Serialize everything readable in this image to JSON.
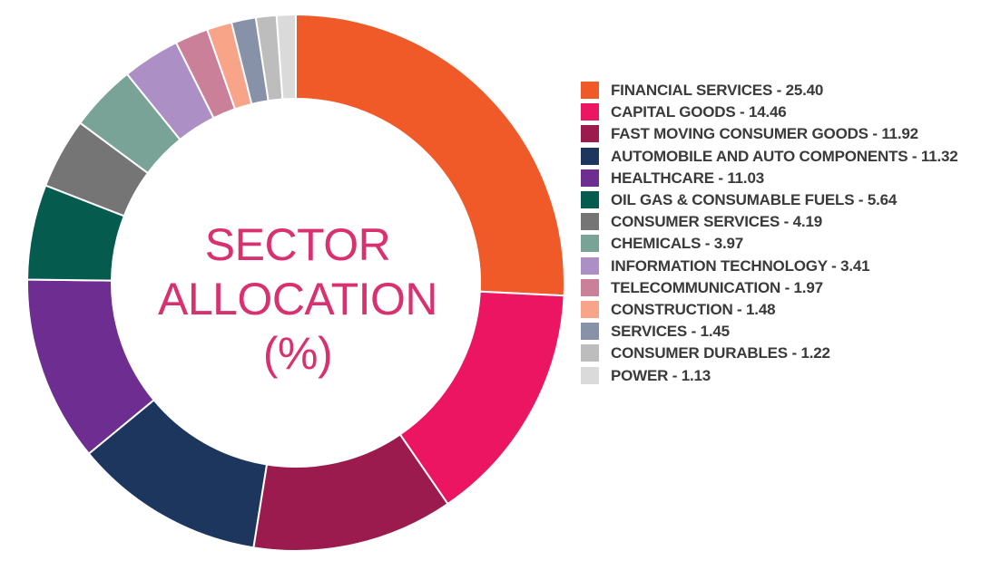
{
  "chart_data": {
    "type": "pie",
    "variant": "donut",
    "title_lines": [
      "SECTOR",
      "ALLOCATION",
      "(%)"
    ],
    "legend_placement": "right",
    "slices": [
      {
        "name": "FINANCIAL SERVICES",
        "value": 25.4,
        "label": "FINANCIAL SERVICES - 25.40",
        "color": "#f05a28"
      },
      {
        "name": "CAPITAL GOODS",
        "value": 14.46,
        "label": "CAPITAL GOODS - 14.46",
        "color": "#ec1561"
      },
      {
        "name": "FAST MOVING CONSUMER GOODS",
        "value": 11.92,
        "label": "FAST MOVING CONSUMER GOODS - 11.92",
        "color": "#9b1b4e"
      },
      {
        "name": "AUTOMOBILE AND AUTO COMPONENTS",
        "value": 11.32,
        "label": "AUTOMOBILE AND AUTO COMPONENTS - 11.32",
        "color": "#1c365e"
      },
      {
        "name": "HEALTHCARE",
        "value": 11.03,
        "label": "HEALTHCARE - 11.03",
        "color": "#6e2d91"
      },
      {
        "name": "OIL GAS & CONSUMABLE FUELS",
        "value": 5.64,
        "label": "OIL GAS & CONSUMABLE FUELS - 5.64",
        "color": "#045b4e"
      },
      {
        "name": "CONSUMER SERVICES",
        "value": 4.19,
        "label": "CONSUMER SERVICES - 4.19",
        "color": "#757575"
      },
      {
        "name": "CHEMICALS",
        "value": 3.97,
        "label": "CHEMICALS - 3.97",
        "color": "#7aa397"
      },
      {
        "name": "INFORMATION TECHNOLOGY",
        "value": 3.41,
        "label": "INFORMATION TECHNOLOGY - 3.41",
        "color": "#ac8fc4"
      },
      {
        "name": "TELECOMMUNICATION",
        "value": 1.97,
        "label": "TELECOMMUNICATION - 1.97",
        "color": "#c98098"
      },
      {
        "name": "CONSTRUCTION",
        "value": 1.48,
        "label": "CONSTRUCTION - 1.48",
        "color": "#f7a489"
      },
      {
        "name": "SERVICES",
        "value": 1.45,
        "label": "SERVICES - 1.45",
        "color": "#8791a8"
      },
      {
        "name": "CONSUMER DURABLES",
        "value": 1.22,
        "label": "CONSUMER DURABLES - 1.22",
        "color": "#bdbdbd"
      },
      {
        "name": "POWER",
        "value": 1.13,
        "label": "POWER - 1.13",
        "color": "#dadada"
      }
    ]
  }
}
